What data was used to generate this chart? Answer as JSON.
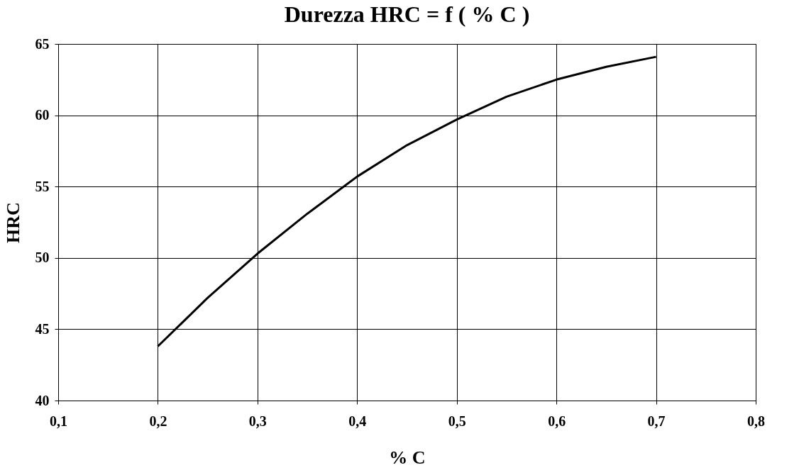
{
  "chart_data": {
    "type": "line",
    "title": "Durezza HRC = f ( % C )",
    "xlabel": "% C",
    "ylabel": "HRC",
    "x": [
      0.2,
      0.25,
      0.3,
      0.35,
      0.4,
      0.45,
      0.5,
      0.55,
      0.6,
      0.65,
      0.7
    ],
    "series": [
      {
        "color": "#000000",
        "values": [
          43.8,
          47.2,
          50.3,
          53.1,
          55.7,
          57.9,
          59.7,
          61.3,
          62.5,
          63.4,
          64.1
        ]
      }
    ],
    "xlim": [
      0.1,
      0.8
    ],
    "xticks": [
      {
        "value": 0.1,
        "label": "0,1"
      },
      {
        "value": 0.2,
        "label": "0,2"
      },
      {
        "value": 0.3,
        "label": "0,3"
      },
      {
        "value": 0.4,
        "label": "0,4"
      },
      {
        "value": 0.5,
        "label": "0,5"
      },
      {
        "value": 0.6,
        "label": "0,6"
      },
      {
        "value": 0.7,
        "label": "0,7"
      },
      {
        "value": 0.8,
        "label": "0,8"
      }
    ],
    "ylim": [
      40,
      65
    ],
    "yticks": [
      40,
      45,
      50,
      55,
      60,
      65
    ],
    "grid": true,
    "marker": "none",
    "line_style": "solid",
    "legend": false
  }
}
